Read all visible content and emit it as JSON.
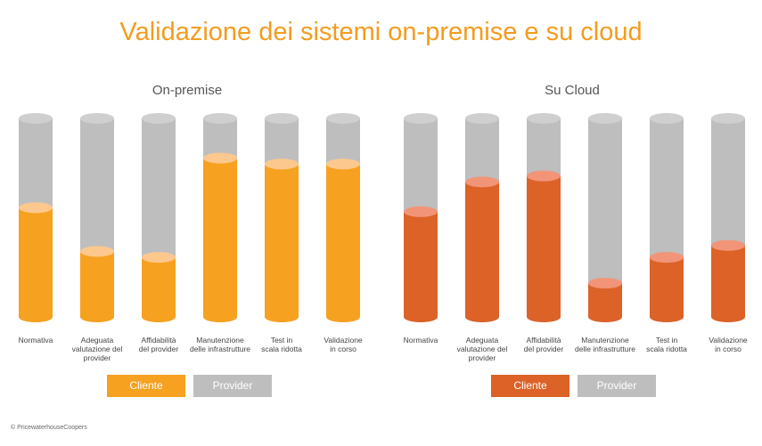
{
  "title": "Validazione dei sistemi on-premise e su cloud",
  "copyright": "© PricewaterhouseCoopers",
  "colors": {
    "title": "#f39c1f",
    "provider": "#bebebe",
    "provider_top": "#cfcfcf",
    "onpremise_cliente": "#f6a11f",
    "onpremise_top": "#fcc88d",
    "cloud_cliente": "#dc6228",
    "cloud_top": "#f29477"
  },
  "chart_data": [
    {
      "type": "bar",
      "title": "On-premise",
      "categories": [
        "Normativa",
        "Adeguata valutazione del provider",
        "Affidabilità del provider",
        "Manutenzione delle infrastrutture",
        "Test in scala ridotta",
        "Validazione in corso"
      ],
      "category_lines": [
        [
          "Normativa"
        ],
        [
          "Adeguata",
          "valutazione del",
          "provider"
        ],
        [
          "Affidabilità",
          "del provider"
        ],
        [
          "Manutenzione",
          "delle infrastrutture"
        ],
        [
          "Test in",
          "scala ridotta"
        ],
        [
          "Validazione",
          "in corso"
        ]
      ],
      "series": [
        {
          "name": "Cliente",
          "values": [
            55,
            33,
            30,
            80,
            77,
            77
          ]
        },
        {
          "name": "Provider",
          "values": [
            45,
            67,
            70,
            20,
            23,
            23
          ]
        }
      ],
      "stacked": true,
      "ylim": [
        0,
        100
      ],
      "legend": [
        "Cliente",
        "Provider"
      ]
    },
    {
      "type": "bar",
      "title": "Su Cloud",
      "categories": [
        "Normativa",
        "Adeguata valutazione del provider",
        "Affidabilità del provider",
        "Manutenzione delle infrastrutture",
        "Test in scala ridotta",
        "Validazione in corso"
      ],
      "category_lines": [
        [
          "Normativa"
        ],
        [
          "Adeguata",
          "valutazione del",
          "provider"
        ],
        [
          "Affidabilità",
          "del provider"
        ],
        [
          "Manutenzione",
          "delle infrastrutture"
        ],
        [
          "Test in",
          "scala ridotta"
        ],
        [
          "Validazione",
          "in corso"
        ]
      ],
      "series": [
        {
          "name": "Cliente",
          "values": [
            53,
            68,
            71,
            17,
            30,
            36
          ]
        },
        {
          "name": "Provider",
          "values": [
            47,
            32,
            29,
            83,
            70,
            64
          ]
        }
      ],
      "stacked": true,
      "ylim": [
        0,
        100
      ],
      "legend": [
        "Cliente",
        "Provider"
      ]
    }
  ]
}
